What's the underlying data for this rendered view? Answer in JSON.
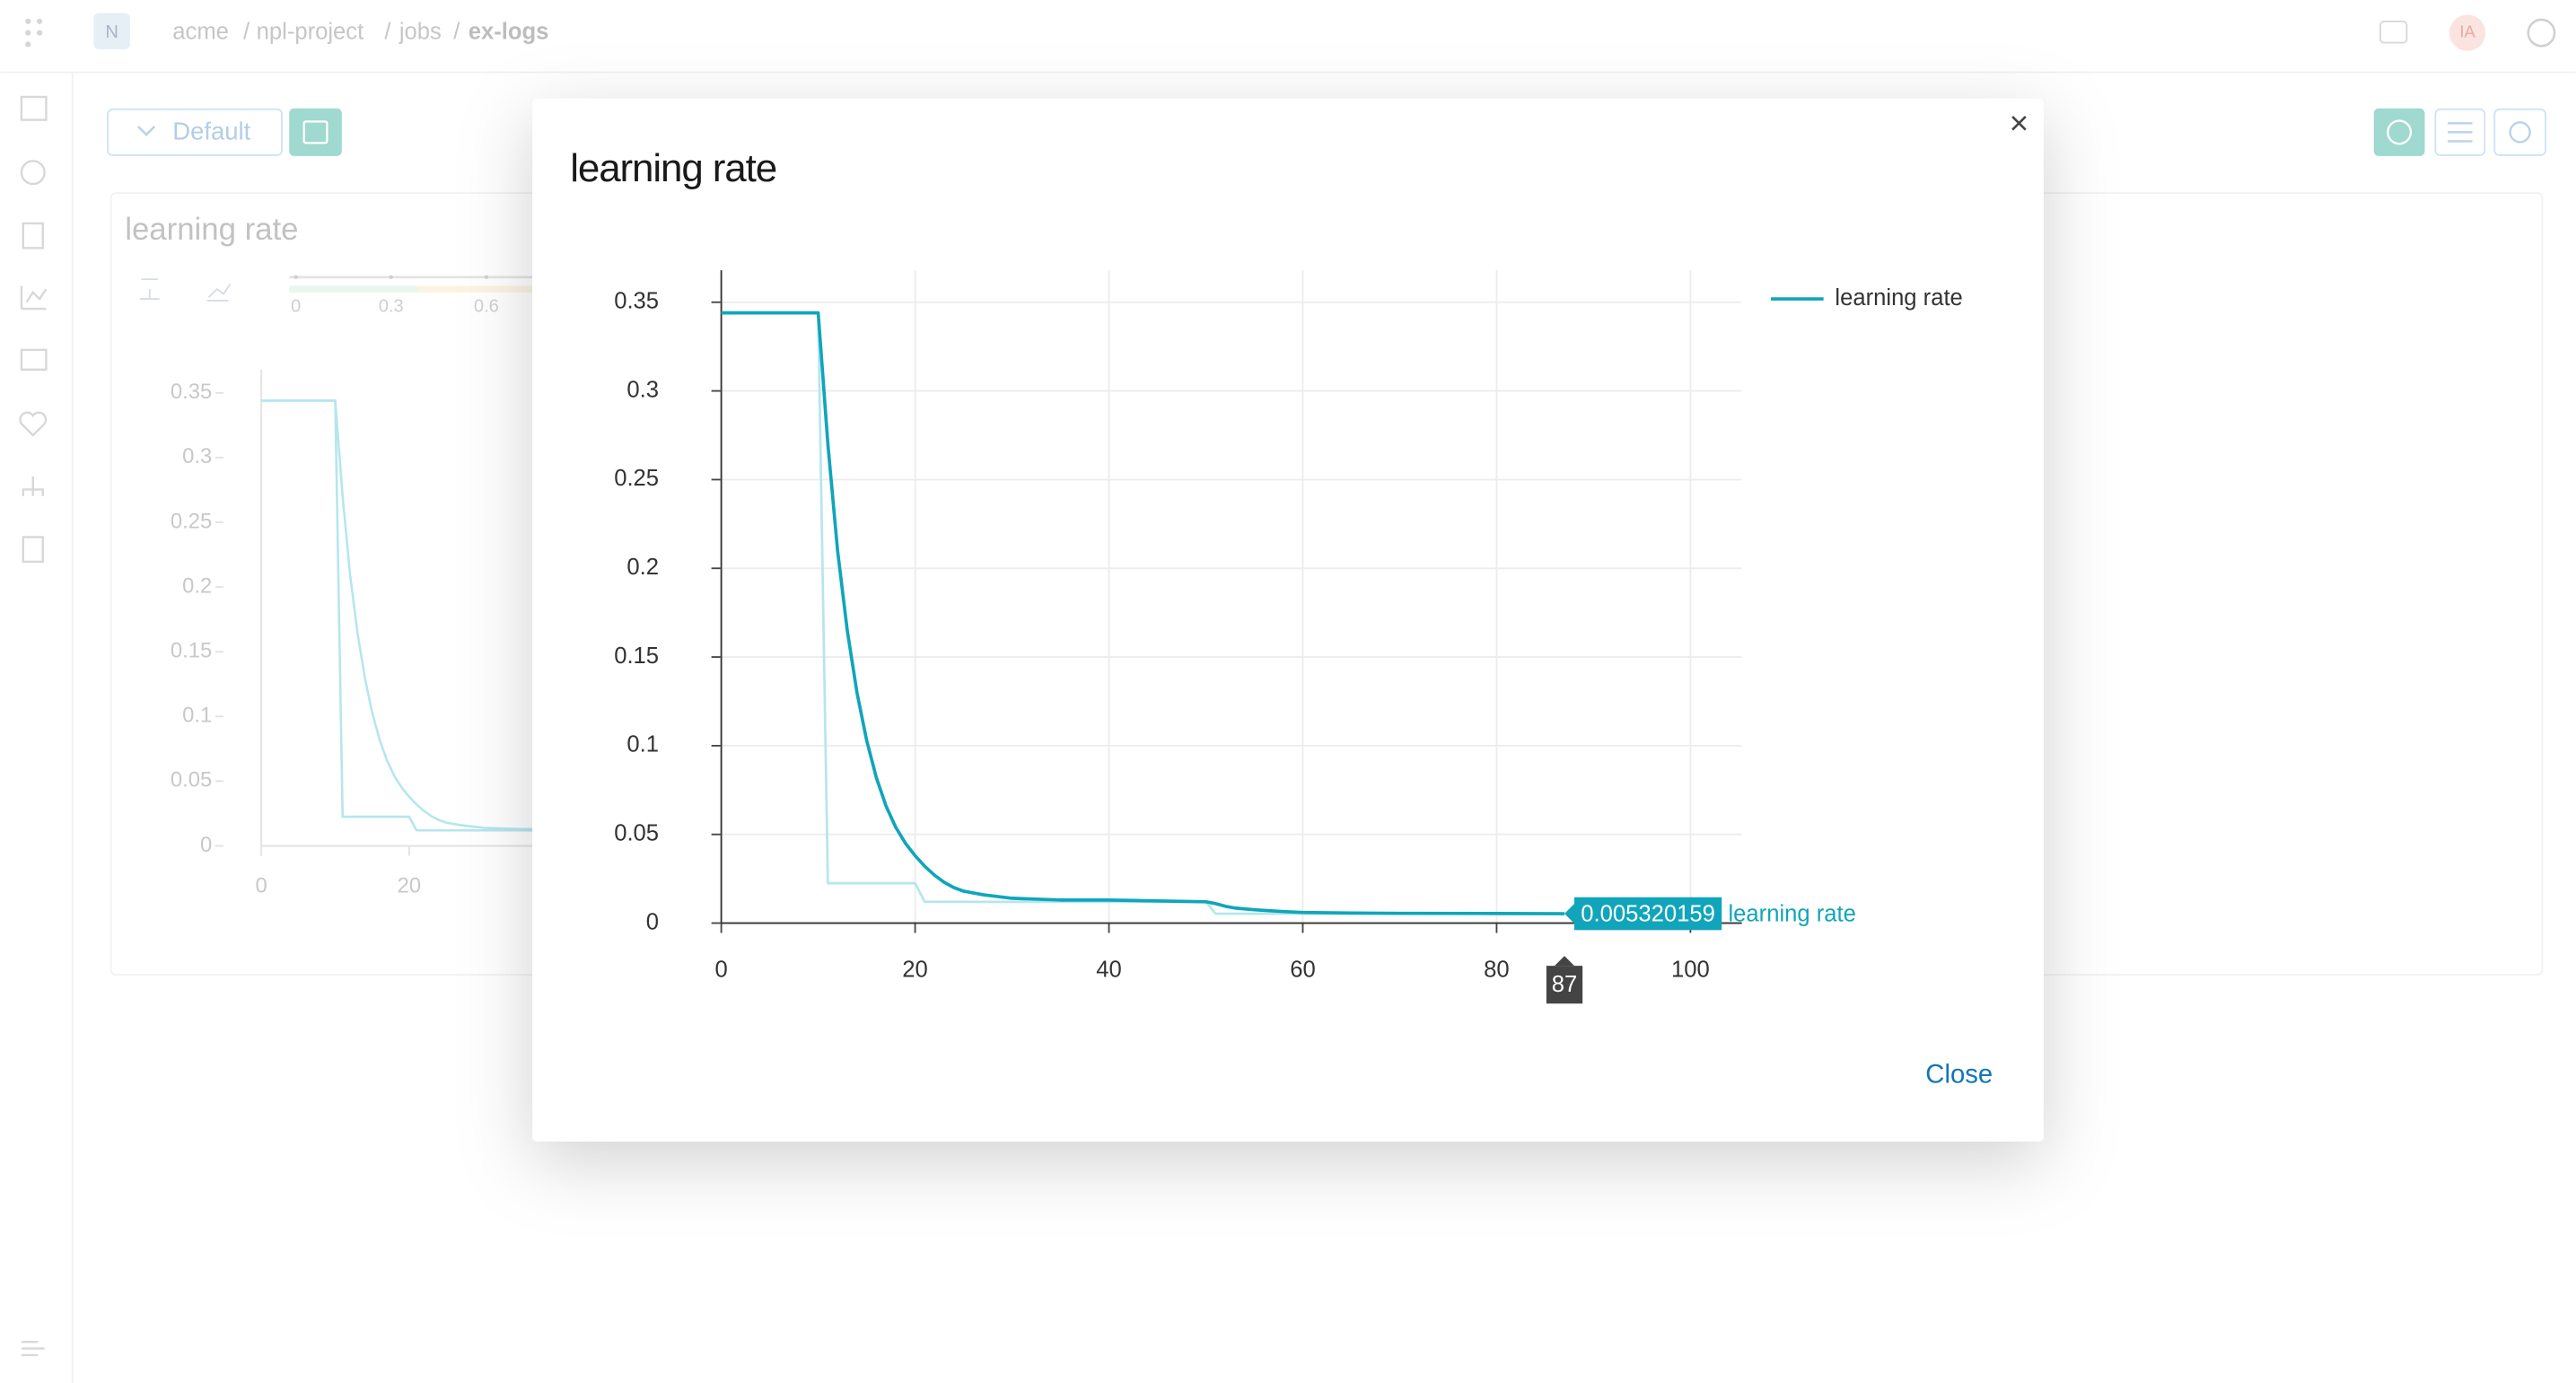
{
  "header": {
    "logo": "N",
    "breadcrumbs": [
      "acme",
      "npl-project",
      "jobs",
      "ex-logs"
    ],
    "avatar": "IA"
  },
  "toolbar": {
    "view": "Default"
  },
  "background_panel": {
    "title": "learning rate",
    "slider_ticks": [
      0,
      0.3,
      0.6
    ],
    "xlim": [
      0,
      100
    ],
    "ylim": [
      0,
      0.368
    ],
    "xticks": [
      0,
      20
    ],
    "yticks": [
      0,
      0.05,
      0.1,
      0.15,
      0.2,
      0.25,
      0.3,
      0.35
    ]
  },
  "modal": {
    "close": "Close"
  },
  "chart_data": {
    "type": "line",
    "title": "learning rate",
    "x": [
      0,
      10,
      11,
      12,
      13,
      14,
      15,
      16,
      17,
      18,
      19,
      20,
      21,
      22,
      23,
      24,
      25,
      27,
      30,
      35,
      40,
      50,
      51,
      52,
      53,
      55,
      58,
      60,
      65,
      70,
      80,
      87
    ],
    "series": [
      {
        "name": "learning rate",
        "color": "#10a5bb",
        "values": [
          0.344,
          0.344,
          0.27,
          0.21,
          0.165,
          0.13,
          0.103,
          0.082,
          0.066,
          0.054,
          0.045,
          0.038,
          0.032,
          0.027,
          0.023,
          0.02,
          0.018,
          0.016,
          0.014,
          0.013,
          0.013,
          0.012,
          0.011,
          0.0095,
          0.0085,
          0.0075,
          0.0065,
          0.006,
          0.0057,
          0.0055,
          0.0054,
          0.005320159
        ]
      },
      {
        "color": "#b5e6ee",
        "values": [
          0.344,
          0.344,
          0.0225,
          0.0225,
          0.0225,
          0.0225,
          0.0225,
          0.0225,
          0.0225,
          0.0225,
          0.0225,
          0.0225,
          0.012,
          0.012,
          0.012,
          0.012,
          0.012,
          0.012,
          0.012,
          0.012,
          0.012,
          0.012,
          0.0053,
          0.0053,
          0.0053,
          0.0053,
          0.0053,
          0.0053,
          0.0053,
          0.0053,
          0.0053,
          0.0053
        ]
      }
    ],
    "xlim": [
      0,
      105.3
    ],
    "ylim": [
      0,
      0.368
    ],
    "xticks": [
      0,
      20,
      40,
      60,
      80,
      100
    ],
    "yticks": [
      0,
      0.05,
      0.1,
      0.15,
      0.2,
      0.25,
      0.3,
      0.35
    ],
    "grid": true,
    "legend": "top-right"
  }
}
